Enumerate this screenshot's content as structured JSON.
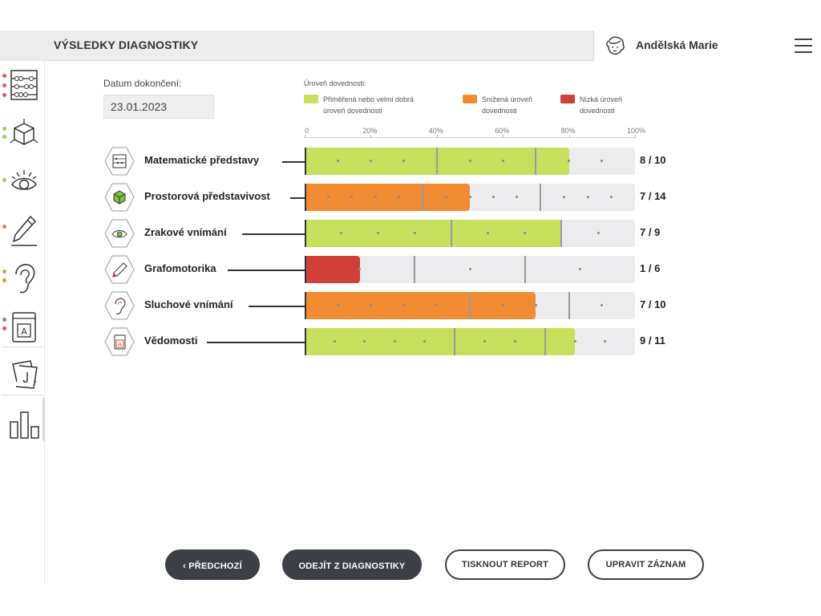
{
  "header": {
    "title": "VÝSLEDKY DIAGNOSTIKY",
    "user_name": "Andělská Marie",
    "avatar_icon": "child-face-icon",
    "menu_icon": "hamburger-menu-icon"
  },
  "sidebar": {
    "items": [
      {
        "name": "math-abacus",
        "icon": "abacus-icon",
        "dots": [
          "#e05a5a",
          "#e05a5a",
          "#e05a5a"
        ]
      },
      {
        "name": "spatial-cube",
        "icon": "cube-icon",
        "dots": [
          "#9ccc4a",
          "#9ccc4a"
        ]
      },
      {
        "name": "visual-eye",
        "icon": "eye-icon",
        "dots": [
          "#9ccc4a"
        ]
      },
      {
        "name": "graphomotor-pencil",
        "icon": "pencil-icon",
        "dots": [
          "#e07a5a"
        ]
      },
      {
        "name": "auditory-ear",
        "icon": "ear-icon",
        "dots": [
          "#f0903a",
          "#f0903a"
        ]
      },
      {
        "name": "knowledge-book",
        "icon": "book-icon",
        "dots": [
          "#e05a5a",
          "#e05a5a"
        ]
      },
      {
        "name": "notes",
        "icon": "notes-icon",
        "dots": []
      },
      {
        "name": "results",
        "icon": "bar-chart-icon",
        "dots": []
      }
    ]
  },
  "date": {
    "label": "Datum dokončení:",
    "value": "23.01.2023"
  },
  "legend": {
    "title": "Úroveň dovednosti:",
    "items": [
      {
        "label": "Přiměřená nebo velmi dobrá úroveň dovednosti",
        "color": "#c6df5c"
      },
      {
        "label": "Snížená úroveň dovednosti",
        "color": "#f28c34"
      },
      {
        "label": "Nízká úroveň dovednosti",
        "color": "#d2403a"
      }
    ]
  },
  "chart_data": {
    "type": "bar",
    "orientation": "horizontal",
    "x_ticks": [
      "0",
      "20%",
      "40%",
      "60%",
      "80%",
      "100%"
    ],
    "xlim": [
      0,
      100
    ],
    "categories": [
      "Matematické představy",
      "Prostorová představivost",
      "Zrakové vnímání",
      "Grafomotorika",
      "Sluchové vnímání",
      "Vědomosti"
    ],
    "icons": [
      "abacus-icon",
      "cube-icon",
      "eye-icon",
      "pencil-icon",
      "ear-icon",
      "book-icon"
    ],
    "scores": [
      {
        "label": "8 / 10",
        "value": 8,
        "max": 10,
        "level_color": "#c6df5c",
        "separators": [
          4,
          7
        ]
      },
      {
        "label": "7 / 14",
        "value": 7,
        "max": 14,
        "level_color": "#f28c34",
        "separators": [
          5,
          10
        ]
      },
      {
        "label": "7 / 9",
        "value": 7,
        "max": 9,
        "level_color": "#c6df5c",
        "separators": [
          4,
          7
        ]
      },
      {
        "label": "1 / 6",
        "value": 1,
        "max": 6,
        "level_color": "#d2403a",
        "separators": [
          2,
          4
        ]
      },
      {
        "label": "7 / 10",
        "value": 7,
        "max": 10,
        "level_color": "#f28c34",
        "separators": [
          5,
          8
        ]
      },
      {
        "label": "9 / 11",
        "value": 9,
        "max": 11,
        "level_color": "#c6df5c",
        "separators": [
          5,
          8
        ]
      }
    ]
  },
  "buttons": {
    "prev": "‹ PŘEDCHOZÍ",
    "exit": "ODEJÍT Z DIAGNOSTIKY",
    "print": "TISKNOUT REPORT",
    "edit": "UPRAVIT ZÁZNAM"
  }
}
